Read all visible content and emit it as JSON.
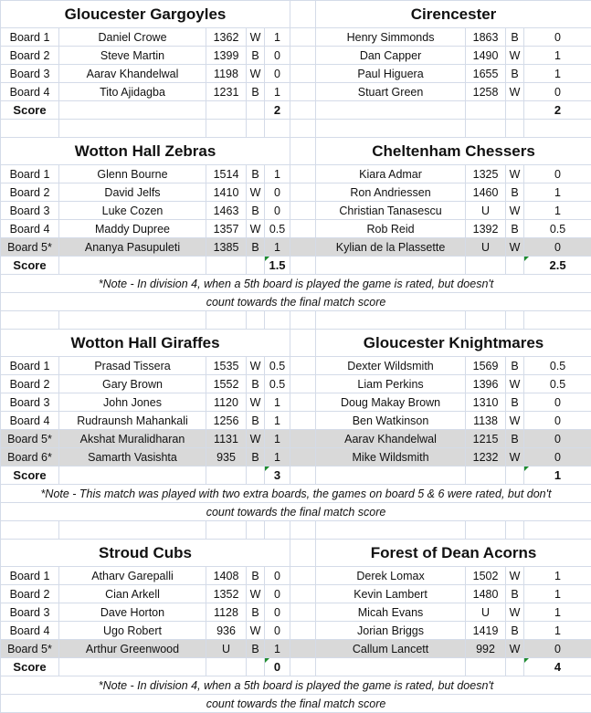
{
  "score_label": "Score",
  "colors": {
    "grid": "#d4dbe8",
    "extra_board_row": "#d9d9d9",
    "error_flag": "#1e8c2e"
  },
  "matches": [
    {
      "home": "Gloucester Gargoyles",
      "away": "Cirencester",
      "boards": [
        {
          "board": "Board 1",
          "home_player": "Daniel Crowe",
          "home_rating": "1362",
          "home_color": "W",
          "home_result": "1",
          "away_player": "Henry Simmonds",
          "away_rating": "1863",
          "away_color": "B",
          "away_result": "0",
          "extra": false
        },
        {
          "board": "Board 2",
          "home_player": "Steve Martin",
          "home_rating": "1399",
          "home_color": "B",
          "home_result": "0",
          "away_player": "Dan Capper",
          "away_rating": "1490",
          "away_color": "W",
          "away_result": "1",
          "extra": false
        },
        {
          "board": "Board 3",
          "home_player": "Aarav Khandelwal",
          "home_rating": "1198",
          "home_color": "W",
          "home_result": "0",
          "away_player": "Paul Higuera",
          "away_rating": "1655",
          "away_color": "B",
          "away_result": "1",
          "extra": false
        },
        {
          "board": "Board 4",
          "home_player": "Tito Ajidagba",
          "home_rating": "1231",
          "home_color": "B",
          "home_result": "1",
          "away_player": "Stuart Green",
          "away_rating": "1258",
          "away_color": "W",
          "away_result": "0",
          "extra": false
        }
      ],
      "home_score": "2",
      "away_score": "2",
      "flag": false,
      "notes": []
    },
    {
      "home": "Wotton Hall Zebras",
      "away": "Cheltenham Chessers",
      "boards": [
        {
          "board": "Board 1",
          "home_player": "Glenn Bourne",
          "home_rating": "1514",
          "home_color": "B",
          "home_result": "1",
          "away_player": "Kiara Admar",
          "away_rating": "1325",
          "away_color": "W",
          "away_result": "0",
          "extra": false
        },
        {
          "board": "Board 2",
          "home_player": "David Jelfs",
          "home_rating": "1410",
          "home_color": "W",
          "home_result": "0",
          "away_player": "Ron Andriessen",
          "away_rating": "1460",
          "away_color": "B",
          "away_result": "1",
          "extra": false
        },
        {
          "board": "Board 3",
          "home_player": "Luke Cozen",
          "home_rating": "1463",
          "home_color": "B",
          "home_result": "0",
          "away_player": "Christian Tanasescu",
          "away_rating": "U",
          "away_color": "W",
          "away_result": "1",
          "extra": false
        },
        {
          "board": "Board 4",
          "home_player": "Maddy Dupree",
          "home_rating": "1357",
          "home_color": "W",
          "home_result": "0.5",
          "away_player": "Rob Reid",
          "away_rating": "1392",
          "away_color": "B",
          "away_result": "0.5",
          "extra": false
        },
        {
          "board": "Board 5*",
          "home_player": "Ananya Pasupuleti",
          "home_rating": "1385",
          "home_color": "B",
          "home_result": "1",
          "away_player": "Kylian de la Plassette",
          "away_rating": "U",
          "away_color": "W",
          "away_result": "0",
          "extra": true
        }
      ],
      "home_score": "1.5",
      "away_score": "2.5",
      "flag": true,
      "notes": [
        "*Note - In division 4, when a 5th board is played the game is rated, but doesn't",
        "count towards the final match score"
      ]
    },
    {
      "home": "Wotton Hall Giraffes",
      "away": "Gloucester Knightmares",
      "boards": [
        {
          "board": "Board 1",
          "home_player": "Prasad Tissera",
          "home_rating": "1535",
          "home_color": "W",
          "home_result": "0.5",
          "away_player": "Dexter Wildsmith",
          "away_rating": "1569",
          "away_color": "B",
          "away_result": "0.5",
          "extra": false
        },
        {
          "board": "Board 2",
          "home_player": "Gary Brown",
          "home_rating": "1552",
          "home_color": "B",
          "home_result": "0.5",
          "away_player": "Liam Perkins",
          "away_rating": "1396",
          "away_color": "W",
          "away_result": "0.5",
          "extra": false
        },
        {
          "board": "Board 3",
          "home_player": "John Jones",
          "home_rating": "1120",
          "home_color": "W",
          "home_result": "1",
          "away_player": "Doug Makay Brown",
          "away_rating": "1310",
          "away_color": "B",
          "away_result": "0",
          "extra": false
        },
        {
          "board": "Board 4",
          "home_player": "Rudraunsh Mahankali",
          "home_rating": "1256",
          "home_color": "B",
          "home_result": "1",
          "away_player": "Ben Watkinson",
          "away_rating": "1138",
          "away_color": "W",
          "away_result": "0",
          "extra": false
        },
        {
          "board": "Board 5*",
          "home_player": "Akshat Muralidharan",
          "home_rating": "1131",
          "home_color": "W",
          "home_result": "1",
          "away_player": "Aarav Khandelwal",
          "away_rating": "1215",
          "away_color": "B",
          "away_result": "0",
          "extra": true
        },
        {
          "board": "Board 6*",
          "home_player": "Samarth Vasishta",
          "home_rating": "935",
          "home_color": "B",
          "home_result": "1",
          "away_player": "Mike Wildsmith",
          "away_rating": "1232",
          "away_color": "W",
          "away_result": "0",
          "extra": true
        }
      ],
      "home_score": "3",
      "away_score": "1",
      "flag": true,
      "notes": [
        "*Note - This match was played with two extra boards, the games on board 5 & 6 were rated, but don't",
        "count towards the final match score"
      ]
    },
    {
      "home": "Stroud Cubs",
      "away": "Forest of Dean Acorns",
      "boards": [
        {
          "board": "Board 1",
          "home_player": "Atharv Garepalli",
          "home_rating": "1408",
          "home_color": "B",
          "home_result": "0",
          "away_player": "Derek Lomax",
          "away_rating": "1502",
          "away_color": "W",
          "away_result": "1",
          "extra": false
        },
        {
          "board": "Board 2",
          "home_player": "Cian Arkell",
          "home_rating": "1352",
          "home_color": "W",
          "home_result": "0",
          "away_player": "Kevin Lambert",
          "away_rating": "1480",
          "away_color": "B",
          "away_result": "1",
          "extra": false
        },
        {
          "board": "Board 3",
          "home_player": "Dave Horton",
          "home_rating": "1128",
          "home_color": "B",
          "home_result": "0",
          "away_player": "Micah Evans",
          "away_rating": "U",
          "away_color": "W",
          "away_result": "1",
          "extra": false
        },
        {
          "board": "Board 4",
          "home_player": "Ugo Robert",
          "home_rating": "936",
          "home_color": "W",
          "home_result": "0",
          "away_player": "Jorian Briggs",
          "away_rating": "1419",
          "away_color": "B",
          "away_result": "1",
          "extra": false
        },
        {
          "board": "Board 5*",
          "home_player": "Arthur Greenwood",
          "home_rating": "U",
          "home_color": "B",
          "home_result": "1",
          "away_player": "Callum Lancett",
          "away_rating": "992",
          "away_color": "W",
          "away_result": "0",
          "extra": true
        }
      ],
      "home_score": "0",
      "away_score": "4",
      "flag": true,
      "notes": [
        "*Note - In division 4, when a 5th board is played the game is rated, but doesn't",
        "count towards the final match score"
      ]
    }
  ]
}
